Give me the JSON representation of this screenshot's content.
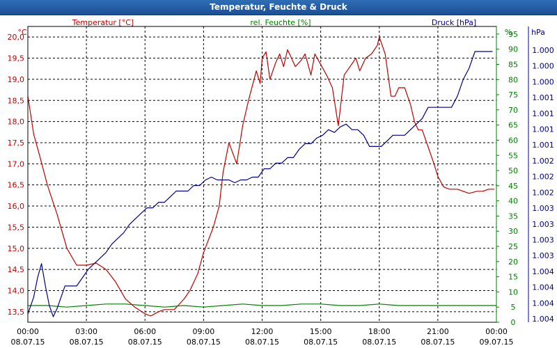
{
  "window": {
    "title": "Temperatur, Feuchte & Druck"
  },
  "colors": {
    "temperature": "#c00000",
    "humidity": "#008000",
    "pressure": "#00008b",
    "grid": "#000000",
    "text": "#000000"
  },
  "chart_data": {
    "type": "line",
    "title": "Temperatur, Feuchte & Druck",
    "x_ticks": [
      [
        "00:00",
        "08.07.15"
      ],
      [
        "03:00",
        "08.07.15"
      ],
      [
        "06:00",
        "08.07.15"
      ],
      [
        "09:00",
        "08.07.15"
      ],
      [
        "12:00",
        "08.07.15"
      ],
      [
        "15:00",
        "08.07.15"
      ],
      [
        "18:00",
        "08.07.15"
      ],
      [
        "21:00",
        "08.07.15"
      ],
      [
        "00:00",
        "09.07.15"
      ]
    ],
    "x_range_hours": [
      0,
      24
    ],
    "axes": {
      "temperature": {
        "unit": "°C",
        "label": "Temperatur [°C]",
        "range": [
          13.25,
          20.25
        ],
        "ticks": [
          "13,5",
          "14,0",
          "14,5",
          "15,0",
          "15,5",
          "16,0",
          "16,5",
          "17,0",
          "17,5",
          "18,0",
          "18,5",
          "19,0",
          "19,5",
          "20,0"
        ],
        "tick_values": [
          13.5,
          14.0,
          14.5,
          15.0,
          15.5,
          16.0,
          16.5,
          17.0,
          17.5,
          18.0,
          18.5,
          19.0,
          19.5,
          20.0
        ]
      },
      "humidity": {
        "unit": "%",
        "label": "rel. Feuchte [%]",
        "range": [
          0,
          97.5
        ],
        "ticks": [
          "0",
          "5",
          "10",
          "15",
          "20",
          "25",
          "30",
          "35",
          "40",
          "45",
          "50",
          "55",
          "60",
          "65",
          "70",
          "75",
          "80",
          "85",
          "90",
          "95"
        ],
        "tick_values": [
          0,
          5,
          10,
          15,
          20,
          25,
          30,
          35,
          40,
          45,
          50,
          55,
          60,
          65,
          70,
          75,
          80,
          85,
          90,
          95
        ]
      },
      "pressure": {
        "unit": "hPa",
        "label": "Druck [hPa]",
        "ticks": [
          "1.000",
          "1.000",
          "1.000",
          "1.001",
          "1.001",
          "1.001",
          "1.001",
          "1.002",
          "1.002",
          "1.002",
          "1.003",
          "1.003",
          "1.003",
          "1.003",
          "1.004",
          "1.004",
          "1.004",
          "1.004"
        ]
      }
    },
    "series": [
      {
        "name": "Temperatur [°C]",
        "axis": "temperature",
        "x": [
          0,
          0.3,
          0.6,
          1,
          1.5,
          2,
          2.5,
          3,
          3.5,
          4,
          4.5,
          5,
          5.5,
          6,
          6.3,
          6.7,
          7,
          7.5,
          8,
          8.3,
          8.7,
          9,
          9.5,
          9.8,
          10,
          10.3,
          10.7,
          11,
          11.3,
          11.7,
          11.9,
          12,
          12.2,
          12.4,
          12.7,
          12.9,
          13.1,
          13.3,
          13.5,
          13.7,
          14,
          14.2,
          14.5,
          14.7,
          15,
          15.3,
          15.6,
          15.9,
          16.2,
          16.5,
          16.8,
          17,
          17.3,
          17.6,
          17.9,
          18,
          18.3,
          18.6,
          18.8,
          19,
          19.3,
          19.6,
          19.8,
          20,
          20.2,
          20.5,
          20.8,
          21,
          21.3,
          21.6,
          22,
          22.3,
          22.6,
          23,
          23.3,
          23.6,
          23.9
        ],
        "values": [
          18.6,
          17.7,
          17.2,
          16.5,
          15.8,
          15.0,
          14.6,
          14.6,
          14.65,
          14.5,
          14.2,
          13.8,
          13.6,
          13.45,
          13.4,
          13.5,
          13.55,
          13.55,
          13.8,
          14.0,
          14.4,
          14.9,
          15.5,
          16.0,
          16.8,
          17.5,
          17.0,
          17.9,
          18.5,
          19.2,
          18.9,
          19.5,
          19.65,
          19.0,
          19.4,
          19.6,
          19.3,
          19.7,
          19.5,
          19.3,
          19.45,
          19.6,
          19.1,
          19.6,
          19.35,
          19.1,
          18.8,
          17.9,
          19.1,
          19.3,
          19.5,
          19.2,
          19.5,
          19.6,
          19.8,
          20.0,
          19.6,
          18.6,
          18.6,
          18.8,
          18.8,
          18.4,
          18.0,
          17.8,
          17.8,
          17.4,
          17.0,
          16.7,
          16.45,
          16.4,
          16.4,
          16.35,
          16.3,
          16.35,
          16.35,
          16.4,
          16.4
        ]
      },
      {
        "name": "rel. Feuchte [%]",
        "axis": "humidity",
        "x": [
          0,
          1,
          2,
          3,
          4,
          5,
          6,
          7,
          8,
          9,
          10,
          11,
          12,
          13,
          14,
          15,
          16,
          17,
          18,
          19,
          20,
          21,
          22,
          23,
          24
        ],
        "values": [
          5.5,
          5.5,
          5,
          5.5,
          6,
          6,
          5.5,
          5,
          5.5,
          5,
          5.5,
          6,
          5.5,
          5.5,
          6,
          6,
          5.5,
          5.5,
          6,
          5.5,
          5.5,
          5.5,
          5.5,
          5.5,
          5.5
        ]
      },
      {
        "name": "Druck [hPa]",
        "axis": "pressure",
        "y_range": [
          0,
          1
        ],
        "x": [
          0,
          0.3,
          0.5,
          0.7,
          0.9,
          1.1,
          1.3,
          1.5,
          1.7,
          1.9,
          2.2,
          2.5,
          2.8,
          3.1,
          3.4,
          3.7,
          4,
          4.3,
          4.6,
          4.9,
          5.2,
          5.5,
          5.8,
          6.1,
          6.4,
          6.7,
          7,
          7.3,
          7.6,
          7.9,
          8.2,
          8.5,
          8.8,
          9.1,
          9.4,
          9.7,
          10,
          10.3,
          10.6,
          10.9,
          11.2,
          11.5,
          11.8,
          12.1,
          12.4,
          12.7,
          13,
          13.3,
          13.6,
          13.9,
          14.2,
          14.5,
          14.8,
          15.1,
          15.4,
          15.7,
          16,
          16.3,
          16.6,
          16.9,
          17.2,
          17.5,
          17.8,
          18.1,
          18.4,
          18.7,
          19,
          19.3,
          19.6,
          19.9,
          20.2,
          20.5,
          20.8,
          21.1,
          21.4,
          21.7,
          22,
          22.3,
          22.6,
          22.9,
          23.2,
          23.5,
          23.8
        ],
        "values": [
          0.02,
          0.08,
          0.15,
          0.2,
          0.12,
          0.05,
          0.01,
          0.04,
          0.08,
          0.12,
          0.12,
          0.12,
          0.15,
          0.18,
          0.2,
          0.22,
          0.24,
          0.27,
          0.29,
          0.31,
          0.34,
          0.36,
          0.38,
          0.4,
          0.4,
          0.42,
          0.42,
          0.44,
          0.46,
          0.46,
          0.46,
          0.48,
          0.48,
          0.5,
          0.51,
          0.5,
          0.5,
          0.5,
          0.49,
          0.5,
          0.5,
          0.51,
          0.51,
          0.54,
          0.54,
          0.56,
          0.56,
          0.58,
          0.58,
          0.61,
          0.63,
          0.63,
          0.65,
          0.66,
          0.68,
          0.67,
          0.69,
          0.7,
          0.68,
          0.68,
          0.66,
          0.62,
          0.62,
          0.62,
          0.64,
          0.66,
          0.66,
          0.66,
          0.68,
          0.7,
          0.72,
          0.76,
          0.76,
          0.76,
          0.76,
          0.76,
          0.8,
          0.86,
          0.9,
          0.96,
          0.96,
          0.96,
          0.96
        ]
      }
    ]
  }
}
